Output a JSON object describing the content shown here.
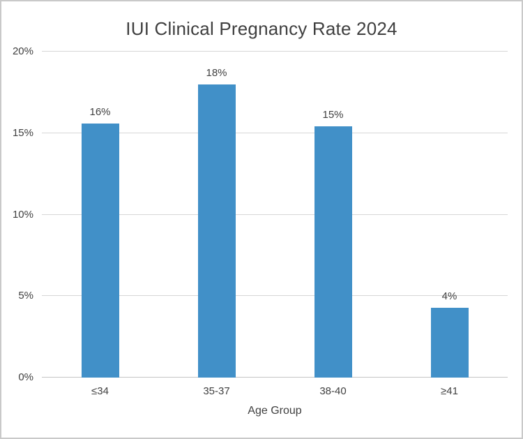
{
  "chart_data": {
    "type": "bar",
    "title": "IUI Clinical Pregnancy Rate 2024",
    "xlabel": "Age Group",
    "ylabel": "",
    "categories": [
      "≤34",
      "35-37",
      "38-40",
      "≥41"
    ],
    "values": [
      15.6,
      18.0,
      15.4,
      4.3
    ],
    "bar_labels": [
      "16%",
      "18%",
      "15%",
      "4%"
    ],
    "ylim": [
      0,
      20
    ],
    "yticks": [
      {
        "value": 0,
        "label": "0%"
      },
      {
        "value": 5,
        "label": "5%"
      },
      {
        "value": 10,
        "label": "10%"
      },
      {
        "value": 15,
        "label": "15%"
      },
      {
        "value": 20,
        "label": "20%"
      }
    ],
    "grid": true,
    "legend": false,
    "bar_color": "#4190C8"
  },
  "colors": {
    "text": "#3F3F3F",
    "gridline": "#D6D6D6",
    "axis_line": "#C4C4C4",
    "frame_border": "#C9C9C9",
    "background": "#FFFFFF"
  }
}
